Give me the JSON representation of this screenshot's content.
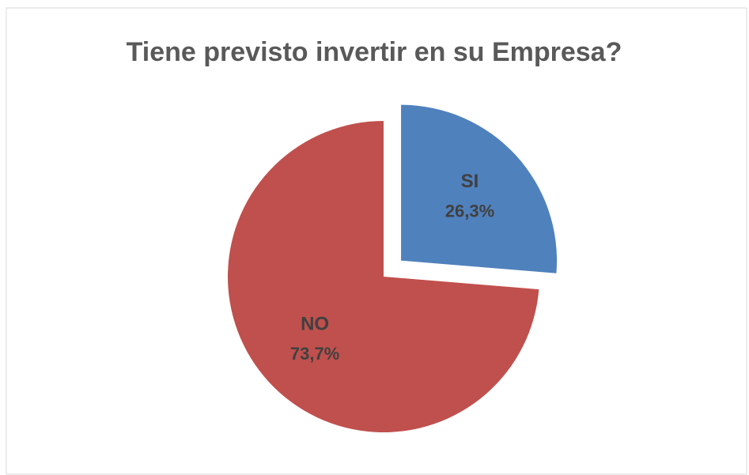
{
  "chart_data": {
    "type": "pie",
    "title": "Tiene previsto invertir en su Empresa?",
    "categories": [
      "SI",
      "NO"
    ],
    "values": [
      26.3,
      73.7
    ],
    "value_labels": [
      "26,3%",
      "73,7%"
    ],
    "colors": [
      "#4f81bd",
      "#c0504d"
    ],
    "explode": [
      true,
      false
    ]
  }
}
